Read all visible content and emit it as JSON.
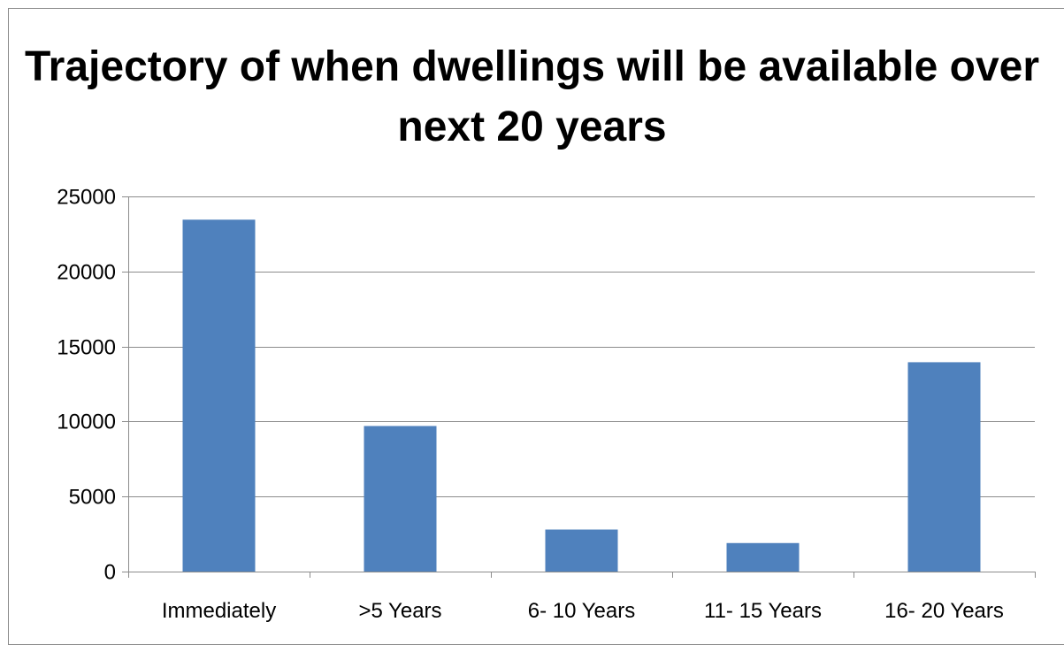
{
  "chart_data": {
    "type": "bar",
    "title": "Trajectory of when dwellings will be available over next 20 years",
    "categories": [
      "Immediately",
      ">5 Years",
      "6- 10 Years",
      "11- 15 Years",
      "16- 20 Years"
    ],
    "values": [
      23450,
      9700,
      2800,
      1900,
      13950
    ],
    "xlabel": "",
    "ylabel": "",
    "ylim": [
      0,
      25000
    ],
    "yticks": [
      0,
      5000,
      10000,
      15000,
      20000,
      25000
    ],
    "grid": true,
    "legend": "none",
    "colors": {
      "bar": "#4f81bd",
      "grid": "#8c8c8c",
      "axis": "#8c8c8c",
      "frame": "#8a8a8a"
    }
  }
}
